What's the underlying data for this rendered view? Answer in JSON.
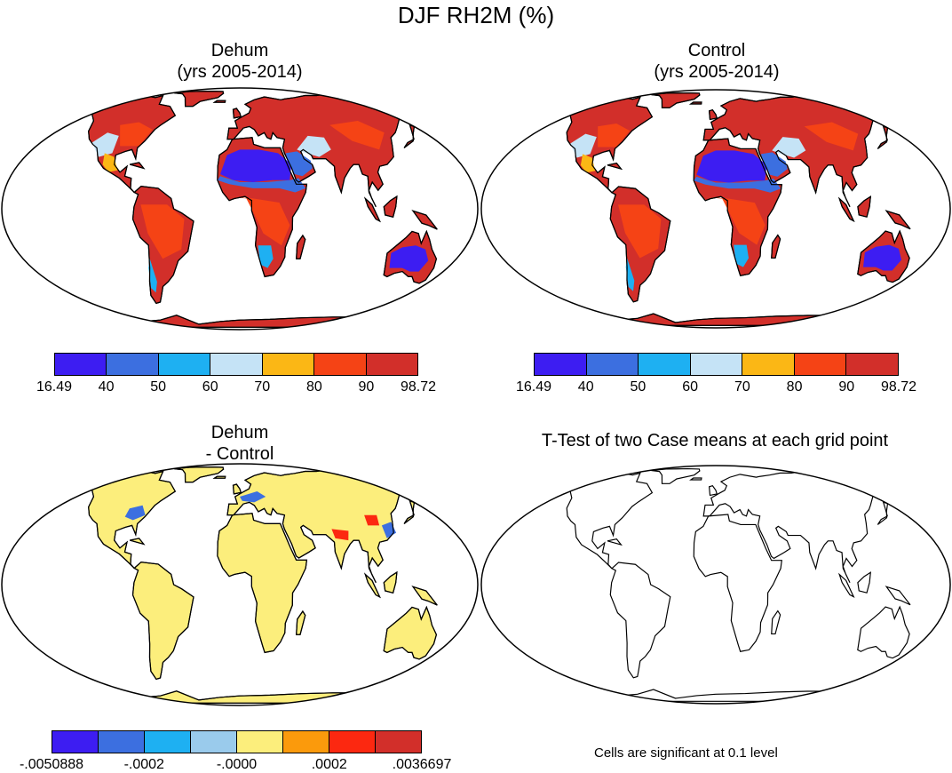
{
  "title": "DJF RH2M (%)",
  "panels": {
    "dehum": {
      "title_line1": "Dehum",
      "title_line2": "(yrs 2005-2014)"
    },
    "control": {
      "title_line1": "Control",
      "title_line2": "(yrs 2005-2014)"
    },
    "diff": {
      "title_line1": "Dehum",
      "title_line2": "- Control"
    },
    "ttest": {
      "title": "T-Test of two Case means at each grid point",
      "note": "Cells are significant at 0.1 level"
    }
  },
  "colorbars": {
    "rh": {
      "colors": [
        "#3d1df2",
        "#3c6fe0",
        "#1eb0f2",
        "#c5e3f6",
        "#fbb715",
        "#f54315",
        "#d22f2a"
      ],
      "labels": [
        "16.49",
        "40",
        "50",
        "60",
        "70",
        "80",
        "90",
        "98.72"
      ]
    },
    "diff": {
      "colors": [
        "#3d1df2",
        "#3c6fe0",
        "#1eb0f2",
        "#9acbec",
        "#fcee7c",
        "#fb9a0c",
        "#fc2810",
        "#d22f2a"
      ],
      "labels": [
        "-.0050888",
        "-.0002",
        "-.0000",
        ".0002",
        ".0036697"
      ]
    }
  },
  "map_colors": {
    "land_default": "#d22f2a",
    "sahara": "#3d1df2",
    "sahel_mid": "#3c6fe0",
    "light_band": "#1eb0f2",
    "pale_band": "#c5e3f6",
    "amber_band": "#fbb715",
    "orange": "#f54315",
    "diff_land": "#fcee7c",
    "diff_blue": "#3c6fe0",
    "diff_red": "#fc2810"
  }
}
